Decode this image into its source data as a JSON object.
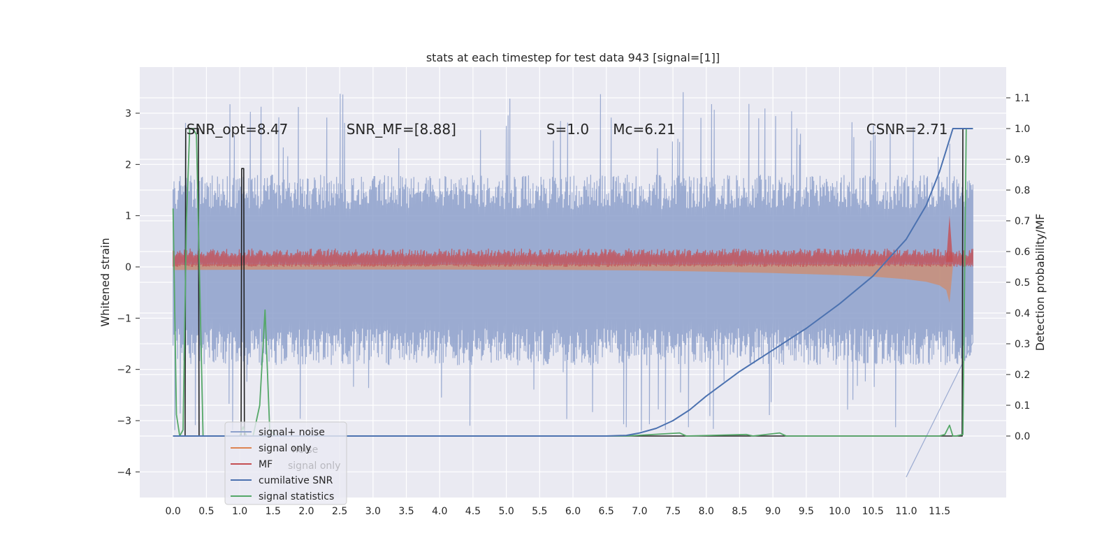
{
  "chart_data": {
    "type": "line",
    "title": "stats at each timestep for test data 943 [signal=[1]]",
    "xlabel": "",
    "ylabel": "Whitened strain",
    "ylabel_right": "Detection probability/MF",
    "xlim": [
      -0.5,
      12.5
    ],
    "ylim": [
      -4.5,
      3.9
    ],
    "ylim_right": [
      -0.2,
      1.2
    ],
    "x_ticks": [
      "0.0",
      "0.5",
      "1.0",
      "1.5",
      "2.0",
      "2.5",
      "3.0",
      "3.5",
      "4.0",
      "4.5",
      "5.0",
      "5.5",
      "6.0",
      "6.5",
      "7.0",
      "7.5",
      "8.0",
      "8.5",
      "9.0",
      "9.5",
      "10.0",
      "10.5",
      "11.0",
      "11.5"
    ],
    "y_ticks": [
      "3",
      "2",
      "1",
      "0",
      "−1",
      "−2",
      "−3",
      "−4"
    ],
    "y_ticks_right": [
      "1.1",
      "1.0",
      "0.9",
      "0.8",
      "0.7",
      "0.6",
      "0.5",
      "0.4",
      "0.3",
      "0.2",
      "0.1",
      "0.0"
    ],
    "grid": true,
    "legend_position": "lower-left",
    "annotations": [
      {
        "text": "SNR_opt=8.47",
        "x": 0.2,
        "y": 2.7
      },
      {
        "text": "SNR_MF=[8.88]",
        "x": 2.6,
        "y": 2.7
      },
      {
        "text": "S=1.0",
        "x": 5.6,
        "y": 2.7
      },
      {
        "text": "Mc=6.21",
        "x": 6.6,
        "y": 2.7
      },
      {
        "text": "CSNR=2.71",
        "x": 10.4,
        "y": 2.7
      }
    ],
    "series": [
      {
        "name": "signal+ noise",
        "axis": "left",
        "color": "#8da0cb",
        "kind": "noise_band",
        "x_range": [
          0.0,
          12.0
        ],
        "band_low": -1.6,
        "band_high": 1.5,
        "peak_max": 3.5,
        "peak_min": -4.1
      },
      {
        "name": "signal only",
        "axis": "left",
        "color": "#dd8452",
        "kind": "chirp_envelope",
        "x": [
          0.0,
          2.0,
          4.0,
          6.0,
          7.0,
          8.0,
          9.0,
          10.0,
          10.5,
          11.0,
          11.3,
          11.5,
          11.6,
          11.65,
          11.7
        ],
        "amplitude": [
          0.06,
          0.05,
          0.05,
          0.06,
          0.07,
          0.09,
          0.12,
          0.16,
          0.19,
          0.24,
          0.29,
          0.36,
          0.45,
          0.7,
          0.0
        ]
      },
      {
        "name": "MF",
        "axis": "left",
        "color": "#c44e52",
        "kind": "mf_band",
        "x_range": [
          0.0,
          12.0
        ],
        "low": 0.0,
        "high": 0.3,
        "peak": 1.0,
        "peak_x": 11.65
      },
      {
        "name": "cumilative SNR",
        "axis": "right",
        "color": "#4c72b0",
        "x": [
          0.0,
          6.5,
          6.8,
          7.0,
          7.25,
          7.5,
          7.75,
          8.0,
          8.5,
          9.0,
          9.5,
          10.0,
          10.5,
          11.0,
          11.3,
          11.5,
          11.6,
          11.7,
          11.9,
          12.0
        ],
        "values": [
          0.0,
          0.0,
          0.002,
          0.01,
          0.025,
          0.05,
          0.085,
          0.13,
          0.21,
          0.28,
          0.35,
          0.43,
          0.52,
          0.64,
          0.75,
          0.86,
          0.93,
          1.0,
          1.0,
          1.0
        ]
      },
      {
        "name": "signal statistics",
        "axis": "right",
        "color": "#55a868",
        "x": [
          0.0,
          0.05,
          0.1,
          0.15,
          0.2,
          0.25,
          0.3,
          0.35,
          0.4,
          0.45,
          1.0,
          1.05,
          1.1,
          1.2,
          1.3,
          1.38,
          1.45,
          1.55,
          6.8,
          7.6,
          7.7,
          8.6,
          8.7,
          9.1,
          9.2,
          11.5,
          11.58,
          11.65,
          11.7,
          11.75,
          11.85,
          11.9,
          12.0
        ],
        "values": [
          0.74,
          0.07,
          0.0,
          0.02,
          0.7,
          1.0,
          1.0,
          0.98,
          0.5,
          0.0,
          0.0,
          0.03,
          0.0,
          0.0,
          0.1,
          0.41,
          0.02,
          0.0,
          0.0,
          0.01,
          0.0,
          0.005,
          0.0,
          0.01,
          0.0,
          0.0,
          0.005,
          0.035,
          0.0,
          0.0,
          0.005,
          1.0,
          1.0
        ]
      },
      {
        "name": "",
        "axis": "right",
        "color": "#222222",
        "kind": "step",
        "legend": false,
        "x": [
          0.0,
          0.18,
          0.19,
          0.38,
          0.39,
          1.02,
          1.03,
          1.06,
          1.07,
          11.84,
          11.85,
          12.0
        ],
        "values": [
          0.0,
          0.0,
          1.0,
          1.0,
          0.0,
          0.0,
          0.87,
          0.87,
          0.0,
          0.0,
          1.0,
          1.0
        ]
      }
    ],
    "legend_entries": [
      {
        "label": "signal+ noise",
        "color": "#8da0cb"
      },
      {
        "label": "signal only",
        "color": "#dd8452"
      },
      {
        "label": "MF",
        "color": "#c44e52"
      },
      {
        "label": "cumilative SNR",
        "color": "#4c72b0"
      },
      {
        "label": "signal statistics",
        "color": "#55a868"
      }
    ],
    "legend_ghost_entries": [
      "noise",
      "signal only"
    ]
  }
}
